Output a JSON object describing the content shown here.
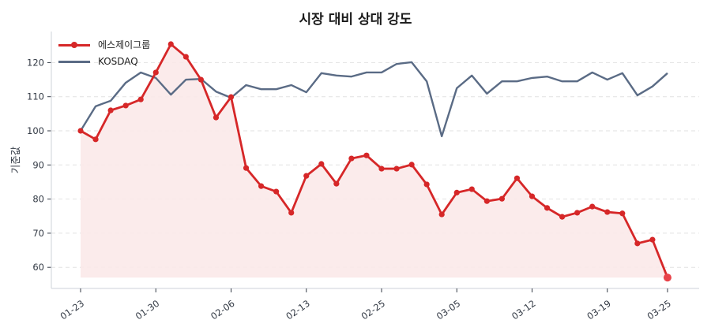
{
  "chart_data": {
    "type": "line",
    "title": "시장 대비 상대 강도",
    "xlabel": "",
    "ylabel": "기준값",
    "ylim": [
      54.5,
      128.5
    ],
    "yticks": [
      60,
      70,
      80,
      90,
      100,
      110,
      120
    ],
    "grid": {
      "y": true,
      "x": false,
      "style": "dashed"
    },
    "legend_position": "upper left",
    "x_tick_labels": [
      {
        "index": 0,
        "label": "01-23"
      },
      {
        "index": 5,
        "label": "01-30"
      },
      {
        "index": 10,
        "label": "02-06"
      },
      {
        "index": 15,
        "label": "02-13"
      },
      {
        "index": 20,
        "label": "02-25"
      },
      {
        "index": 25,
        "label": "03-05"
      },
      {
        "index": 30,
        "label": "03-12"
      },
      {
        "index": 35,
        "label": "03-19"
      },
      {
        "index": 39,
        "label": "03-25"
      }
    ],
    "num_points": 40,
    "series": [
      {
        "name": "에스제이그룹",
        "color": "#d62728",
        "markers": true,
        "fill_to": 57.0,
        "fill_color": "#fbe9e9",
        "values": [
          100.0,
          97.5,
          106.0,
          107.4,
          109.2,
          117.1,
          125.4,
          121.7,
          115.0,
          103.9,
          109.9,
          89.1,
          83.8,
          82.2,
          76.0,
          86.8,
          90.3,
          84.5,
          91.9,
          92.8,
          88.9,
          88.9,
          90.1,
          84.3,
          75.5,
          81.9,
          82.9,
          79.4,
          80.1,
          86.1,
          80.8,
          77.4,
          74.8,
          76.0,
          77.8,
          76.2,
          75.8,
          67.0,
          68.1,
          57.0
        ]
      },
      {
        "name": "KOSDAQ",
        "color": "#5a6b85",
        "markers": false,
        "values": [
          100.0,
          107.2,
          108.8,
          114.1,
          117.1,
          115.5,
          110.6,
          115.0,
          115.2,
          111.5,
          109.7,
          113.4,
          112.2,
          112.2,
          113.4,
          111.3,
          116.9,
          116.2,
          115.9,
          117.1,
          117.1,
          119.6,
          120.1,
          114.5,
          98.4,
          112.5,
          116.2,
          110.9,
          114.5,
          114.5,
          115.5,
          115.9,
          114.5,
          114.5,
          117.1,
          115.0,
          116.9,
          110.4,
          113.0,
          116.9
        ]
      }
    ]
  }
}
